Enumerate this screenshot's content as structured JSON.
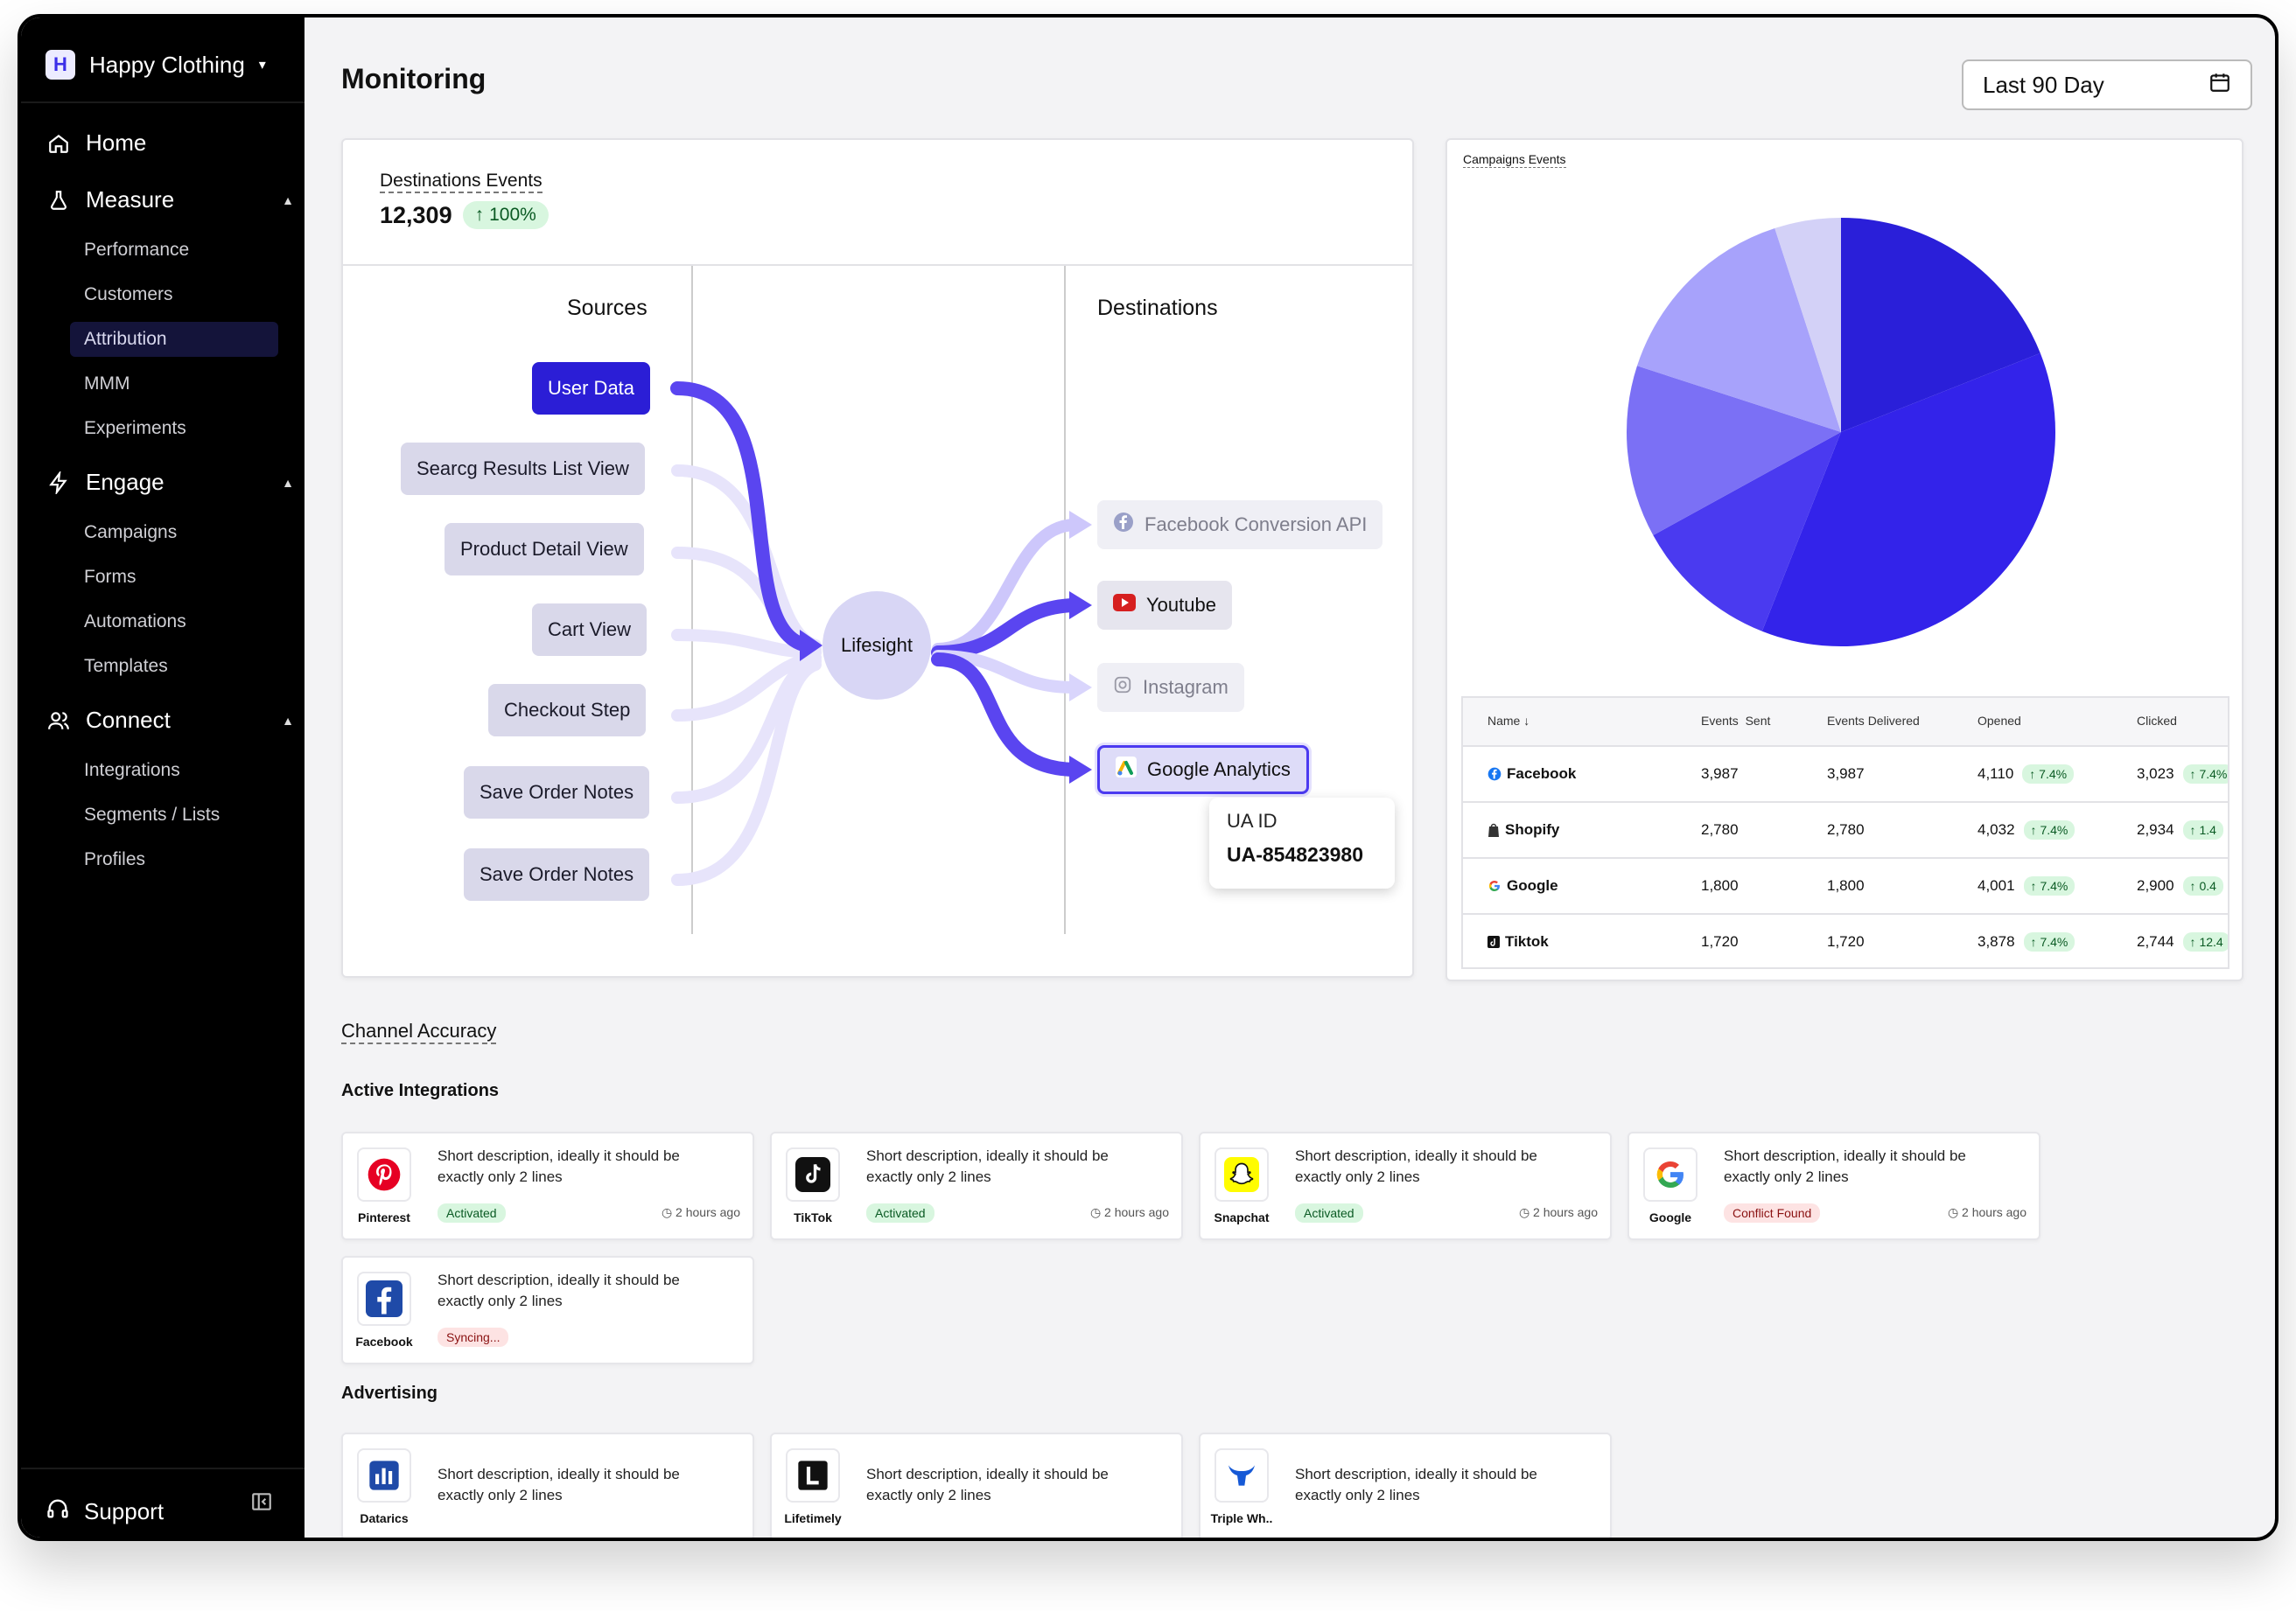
{
  "sidebar": {
    "brand": "Happy Clothing",
    "brand_initial": "H",
    "home": "Home",
    "measure": "Measure",
    "measure_items": [
      "Performance",
      "Customers",
      "Attribution",
      "MMM",
      "Experiments"
    ],
    "engage": "Engage",
    "engage_items": [
      "Campaigns",
      "Forms",
      "Automations",
      "Templates"
    ],
    "connect": "Connect",
    "connect_items": [
      "Integrations",
      "Segments / Lists",
      "Profiles"
    ],
    "support": "Support"
  },
  "header": {
    "title": "Monitoring",
    "date_range": "Last 90 Day"
  },
  "destinations": {
    "title": "Destinations Events",
    "count": "12,309",
    "change": "100%",
    "sources_label": "Sources",
    "destinations_label": "Destinations",
    "hub": "Lifesight",
    "sources": [
      "User Data",
      "Searcg Results List View",
      "Product Detail View",
      "Cart View",
      "Checkout Step",
      "Save Order Notes",
      "Save Order Notes"
    ],
    "dest_items": [
      "Facebook Conversion API",
      "Youtube",
      "Instagram",
      "Google Analytics"
    ],
    "tooltip_label": "UA ID",
    "tooltip_value": "UA-854823980"
  },
  "campaigns": {
    "title": "Campaigns Events",
    "columns": [
      "Name",
      "Events  Sent",
      "Events Delivered",
      "Opened",
      "Clicked"
    ],
    "rows": [
      {
        "name": "Facebook",
        "sent": "3,987",
        "delivered": "3,987",
        "opened": "4,110",
        "opened_change": "7.4%",
        "clicked": "3,023",
        "clicked_change": "7.4%"
      },
      {
        "name": "Shopify",
        "sent": "2,780",
        "delivered": "2,780",
        "opened": "4,032",
        "opened_change": "7.4%",
        "clicked": "2,934",
        "clicked_change": "1.4"
      },
      {
        "name": "Google",
        "sent": "1,800",
        "delivered": "1,800",
        "opened": "4,001",
        "opened_change": "7.4%",
        "clicked": "2,900",
        "clicked_change": "0.4"
      },
      {
        "name": "Tiktok",
        "sent": "1,720",
        "delivered": "1,720",
        "opened": "3,878",
        "opened_change": "7.4%",
        "clicked": "2,744",
        "clicked_change": "12.4"
      }
    ]
  },
  "chart_data": {
    "type": "pie",
    "title": "Campaigns Events",
    "slices": [
      {
        "value": 19,
        "color": "#2a1fd9"
      },
      {
        "value": 37,
        "color": "#3323ea"
      },
      {
        "value": 11,
        "color": "#4a3af0"
      },
      {
        "value": 13,
        "color": "#7b70f5"
      },
      {
        "value": 15,
        "color": "#a7a2fb"
      },
      {
        "value": 5,
        "color": "#d3d1f7"
      }
    ]
  },
  "channel_accuracy": {
    "title": "Channel Accuracy",
    "active_title": "Active Integrations",
    "active": [
      {
        "name": "Pinterest",
        "desc": "Short description, ideally it should be exactly only 2 lines",
        "status": "Activated",
        "time": "2 hours ago"
      },
      {
        "name": "TikTok",
        "desc": "Short description, ideally it should be exactly only 2 lines",
        "status": "Activated",
        "time": "2 hours ago"
      },
      {
        "name": "Snapchat",
        "desc": "Short description, ideally it should be exactly only 2 lines",
        "status": "Activated",
        "time": "2 hours ago"
      },
      {
        "name": "Google",
        "desc": "Short description, ideally it should be exactly only 2 lines",
        "status": "Conflict Found",
        "time": "2 hours ago"
      },
      {
        "name": "Facebook",
        "desc": "Short description, ideally it should be exactly only 2 lines",
        "status": "Syncing...",
        "time": ""
      }
    ],
    "advertising_title": "Advertising",
    "advertising": [
      {
        "name": "Datarics",
        "desc": "Short description, ideally it should be exactly only 2 lines"
      },
      {
        "name": "Lifetimely",
        "desc": "Short description, ideally it should be exactly only 2 lines"
      },
      {
        "name": "Triple Wh..",
        "desc": "Short description, ideally it should be exactly only 2 lines"
      }
    ]
  },
  "colors": {
    "accent": "#2b1ed6",
    "sidebar_bg": "#000000",
    "success_bg": "#d8f6df",
    "danger_bg": "#fde3e3"
  }
}
